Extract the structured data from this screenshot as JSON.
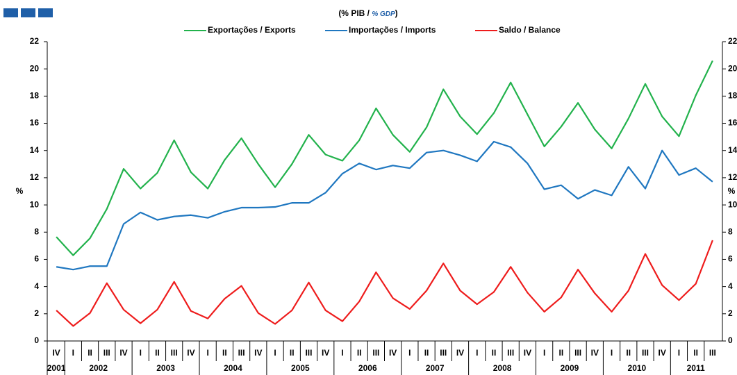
{
  "chart_data": {
    "type": "line",
    "subtitle": [
      "(% PIB / ",
      "% GDP",
      ")"
    ],
    "y_label": "%",
    "y2_label": "%",
    "groups": [
      {
        "label": "2001",
        "categories": [
          "IV"
        ]
      },
      {
        "label": "2002",
        "categories": [
          "I",
          "II",
          "III",
          "IV"
        ]
      },
      {
        "label": "2003",
        "categories": [
          "I",
          "II",
          "III",
          "IV"
        ]
      },
      {
        "label": "2004",
        "categories": [
          "I",
          "II",
          "III",
          "IV"
        ]
      },
      {
        "label": "2005",
        "categories": [
          "I",
          "II",
          "III",
          "IV"
        ]
      },
      {
        "label": "2006",
        "categories": [
          "I",
          "II",
          "III",
          "IV"
        ]
      },
      {
        "label": "2007",
        "categories": [
          "I",
          "II",
          "III",
          "IV"
        ]
      },
      {
        "label": "2008",
        "categories": [
          "I",
          "II",
          "III",
          "IV"
        ]
      },
      {
        "label": "2009",
        "categories": [
          "I",
          "II",
          "III",
          "IV"
        ]
      },
      {
        "label": "2010",
        "categories": [
          "I",
          "II",
          "III",
          "IV"
        ]
      },
      {
        "label": "2011",
        "categories": [
          "I",
          "II",
          "III"
        ]
      }
    ],
    "series": [
      {
        "name": "Exportações / Exports",
        "color": "#22b24c",
        "values": [
          7.65,
          6.3,
          7.55,
          9.7,
          12.65,
          11.2,
          12.35,
          14.75,
          12.4,
          11.2,
          13.3,
          14.9,
          13.0,
          11.3,
          13.0,
          15.15,
          13.7,
          13.25,
          14.75,
          17.1,
          15.15,
          13.9,
          15.7,
          18.5,
          16.5,
          15.2,
          16.75,
          19.0,
          16.65,
          14.3,
          15.75,
          17.5,
          15.55,
          14.15,
          16.35,
          18.9,
          16.5,
          15.05,
          18.05,
          20.6
        ]
      },
      {
        "name": "Importações / Imports",
        "color": "#1f77c0",
        "values": [
          5.45,
          5.25,
          5.5,
          5.5,
          8.6,
          9.45,
          8.9,
          9.15,
          9.25,
          9.05,
          9.5,
          9.8,
          9.8,
          9.85,
          10.15,
          10.15,
          10.9,
          12.3,
          13.05,
          12.6,
          12.9,
          12.7,
          13.85,
          14.0,
          13.65,
          13.2,
          14.65,
          14.25,
          13.05,
          11.15,
          11.45,
          10.45,
          11.1,
          10.7,
          12.8,
          11.2,
          14.0,
          12.2,
          12.7,
          11.7
        ]
      },
      {
        "name": "Saldo / Balance",
        "color": "#ee1c1c",
        "values": [
          2.25,
          1.1,
          2.05,
          4.25,
          2.3,
          1.3,
          2.3,
          4.35,
          2.2,
          1.65,
          3.1,
          4.05,
          2.05,
          1.25,
          2.25,
          4.3,
          2.25,
          1.45,
          2.9,
          5.05,
          3.15,
          2.35,
          3.7,
          5.7,
          3.7,
          2.7,
          3.6,
          5.45,
          3.55,
          2.15,
          3.2,
          5.25,
          3.5,
          2.15,
          3.7,
          6.4,
          4.1,
          3.0,
          4.2,
          7.4
        ]
      }
    ],
    "ylim": [
      0,
      22
    ],
    "yticks": [
      0,
      2,
      4,
      6,
      8,
      10,
      12,
      14,
      16,
      18,
      20,
      22
    ],
    "y2lim": [
      0,
      22
    ],
    "y2ticks": [
      0,
      2,
      4,
      6,
      8,
      10,
      12,
      14,
      16,
      18,
      20,
      22
    ],
    "grid": false,
    "legend": "top"
  }
}
